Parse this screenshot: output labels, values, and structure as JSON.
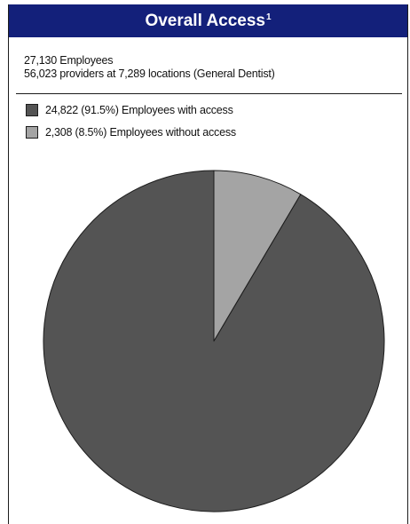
{
  "chart_data": {
    "type": "pie",
    "title": "Overall Access",
    "title_superscript": "1",
    "summary_lines": [
      "27,130 Employees",
      "56,023 providers at 7,289 locations (General Dentist)"
    ],
    "slices": [
      {
        "label": "Employees with access",
        "value": 24822,
        "percent": 91.5,
        "legend_text": "24,822 (91.5%) Employees with access",
        "color": "#545454"
      },
      {
        "label": "Employees without access",
        "value": 2308,
        "percent": 8.5,
        "legend_text": "2,308 (8.5%) Employees without access",
        "color": "#a4a4a4"
      }
    ],
    "legend_position": "top-left",
    "start_angle_deg": 0,
    "direction": "counterclockwise",
    "colors": {
      "header_bg": "#13207a",
      "header_text": "#ffffff",
      "slice_border": "#1c1c1c"
    }
  }
}
